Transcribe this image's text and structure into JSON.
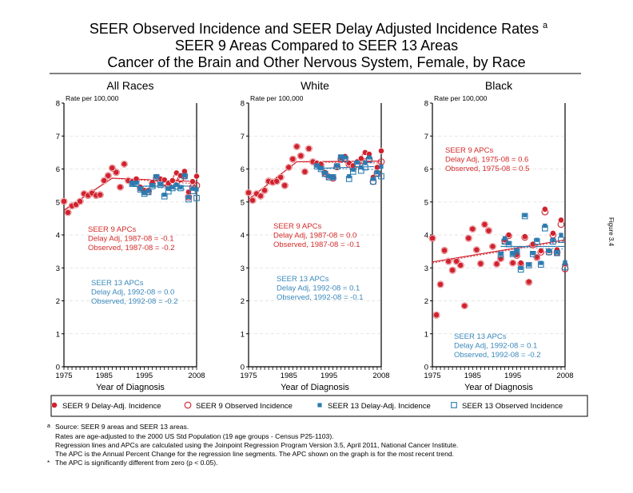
{
  "title": {
    "line1": "SEER Observed Incidence and SEER Delay Adjusted Incidence Rates",
    "line1_sup": "a",
    "line2": "SEER 9 Areas Compared to SEER 13 Areas",
    "line3": "Cancer of the Brain and Other Nervous System, Female, by Race"
  },
  "side_label": "Figure 3.4",
  "colors": {
    "seer9": "#d0222e",
    "seer13": "#2b7bb0",
    "seer9_text": "#d42a2a",
    "seer13_text": "#3a88bb",
    "grid": "#dddddd"
  },
  "legend": {
    "items": [
      {
        "label": "SEER 9 Delay-Adj. Incidence",
        "marker": "filled-circle",
        "series": "seer9"
      },
      {
        "label": "SEER 9 Observed Incidence",
        "marker": "open-circle",
        "series": "seer9"
      },
      {
        "label": "SEER 13 Delay-Adj. Incidence",
        "marker": "filled-square",
        "series": "seer13"
      },
      {
        "label": "SEER 13 Observed Incidence",
        "marker": "open-square",
        "series": "seer13"
      }
    ]
  },
  "footnotes": {
    "a_marker": "a",
    "a_lines": [
      "Source: SEER 9 areas and SEER 13 areas.",
      "Rates are age-adjusted to the 2000 US Std Population (19 age groups - Census P25-1103).",
      "Regression lines and APCs are calculated using the Joinpoint Regression Program Version 3.5, April 2011, National Cancer Institute.",
      "The APC is the Annual Percent Change for the regression line segments. The APC shown on the graph is for the most recent trend."
    ],
    "star_marker": "*",
    "star_line": "The APC is significantly different from zero (p < 0.05)."
  },
  "chart_data": [
    {
      "type": "scatter",
      "title": "All Races",
      "xlabel": "Year of Diagnosis",
      "ylabel": "Rate per 100,000",
      "xlim": [
        1975,
        2008
      ],
      "ylim": [
        0,
        8
      ],
      "xticks": [
        "1975",
        "1985",
        "1995",
        "2008"
      ],
      "yticks": [
        "0",
        "1",
        "2",
        "3",
        "4",
        "5",
        "6",
        "7",
        "8"
      ],
      "grid": true,
      "annotations": {
        "seer9": [
          "SEER 9 APCs",
          "Delay Adj, 1987-08 = -0.1",
          "Observed, 1987-08 = -0.2"
        ],
        "seer13": [
          "SEER 13 APCs",
          "Delay Adj, 1992-08 = 0.0",
          "Observed, 1992-08 = -0.2"
        ]
      },
      "seer9": {
        "start": 1975,
        "delay_adj": [
          5.02,
          4.68,
          4.88,
          4.92,
          5.02,
          5.25,
          5.2,
          5.27,
          5.2,
          5.22,
          5.65,
          5.8,
          6.03,
          5.9,
          5.45,
          6.15,
          5.65,
          5.62,
          5.7,
          5.45,
          5.35,
          5.35,
          5.6,
          5.77,
          5.7,
          5.67,
          5.57,
          5.65,
          5.88,
          5.8,
          5.93,
          5.3,
          5.62,
          5.78
        ],
        "observed": [
          5.02,
          4.68,
          4.88,
          4.92,
          5.02,
          5.25,
          5.2,
          5.27,
          5.2,
          5.22,
          5.65,
          5.8,
          6.03,
          5.9,
          5.45,
          6.15,
          5.65,
          5.62,
          5.68,
          5.43,
          5.33,
          5.32,
          5.57,
          5.73,
          5.65,
          5.6,
          5.5,
          5.55,
          5.75,
          5.7,
          5.8,
          5.15,
          5.45,
          5.5
        ],
        "delay_adj_trend": [
          [
            1975,
            4.75
          ],
          [
            1987,
            5.72
          ],
          [
            2008,
            5.62
          ]
        ],
        "observed_trend": [
          [
            1975,
            4.75
          ],
          [
            1987,
            5.72
          ],
          [
            2008,
            5.55
          ]
        ]
      },
      "seer13": {
        "start": 1992,
        "delay_adj": [
          5.55,
          5.58,
          5.4,
          5.27,
          5.33,
          5.5,
          5.77,
          5.55,
          5.22,
          5.4,
          5.45,
          5.52,
          5.45,
          5.8,
          5.15,
          5.4,
          5.38
        ],
        "observed": [
          5.55,
          5.55,
          5.38,
          5.25,
          5.3,
          5.48,
          5.75,
          5.52,
          5.17,
          5.32,
          5.42,
          5.47,
          5.42,
          5.78,
          5.08,
          5.33,
          5.12
        ],
        "delay_adj_trend": [
          [
            1992,
            5.48
          ],
          [
            2008,
            5.48
          ]
        ],
        "observed_trend": [
          [
            1992,
            5.5
          ],
          [
            2008,
            5.35
          ]
        ]
      }
    },
    {
      "type": "scatter",
      "title": "White",
      "xlabel": "Year of Diagnosis",
      "ylabel": "Rate per 100,000",
      "xlim": [
        1975,
        2008
      ],
      "ylim": [
        0,
        8
      ],
      "xticks": [
        "1975",
        "1985",
        "1995",
        "2008"
      ],
      "yticks": [
        "0",
        "1",
        "2",
        "3",
        "4",
        "5",
        "6",
        "7",
        "8"
      ],
      "grid": true,
      "annotations": {
        "seer9": [
          "SEER 9 APCs",
          "Delay Adj, 1987-08 = 0.0",
          "Observed, 1987-08 = -0.1"
        ],
        "seer13": [
          "SEER 13 APCs",
          "Delay Adj, 1992-08 = 0.1",
          "Observed, 1992-08 = -0.1"
        ]
      },
      "seer9": {
        "start": 1975,
        "delay_adj": [
          5.28,
          5.05,
          5.25,
          5.18,
          5.35,
          5.63,
          5.6,
          5.63,
          5.75,
          5.5,
          6.05,
          6.3,
          6.68,
          6.4,
          5.92,
          6.62,
          6.22,
          6.18,
          6.15,
          5.9,
          5.78,
          5.75,
          6.1,
          6.35,
          6.38,
          6.18,
          6.1,
          6.22,
          6.32,
          6.5,
          6.45,
          5.75,
          6.05,
          6.55
        ],
        "observed": [
          5.28,
          5.05,
          5.25,
          5.18,
          5.35,
          5.63,
          5.6,
          5.63,
          5.75,
          5.5,
          6.05,
          6.3,
          6.68,
          6.4,
          5.92,
          6.62,
          6.22,
          6.16,
          6.13,
          5.88,
          5.76,
          5.72,
          6.07,
          6.3,
          6.33,
          6.15,
          6.05,
          6.15,
          6.25,
          6.4,
          6.3,
          5.62,
          5.88,
          6.22
        ],
        "delay_adj_trend": [
          [
            1975,
            5.08
          ],
          [
            1987,
            6.22
          ],
          [
            2008,
            6.24
          ]
        ],
        "observed_trend": [
          [
            1975,
            5.08
          ],
          [
            1987,
            6.22
          ],
          [
            2008,
            6.18
          ]
        ]
      },
      "seer13": {
        "start": 1992,
        "delay_adj": [
          6.1,
          6.02,
          5.88,
          5.78,
          5.75,
          6.1,
          6.37,
          6.35,
          5.78,
          5.98,
          6.2,
          6.05,
          6.2,
          6.35,
          5.7,
          5.9,
          6.07
        ],
        "observed": [
          6.08,
          6.0,
          5.85,
          5.75,
          5.75,
          6.08,
          6.35,
          6.3,
          5.7,
          5.92,
          6.15,
          5.95,
          6.05,
          6.28,
          5.62,
          5.85,
          5.78
        ],
        "delay_adj_trend": [
          [
            1992,
            6.02
          ],
          [
            2008,
            6.08
          ]
        ],
        "observed_trend": [
          [
            1992,
            6.02
          ],
          [
            2008,
            5.98
          ]
        ]
      }
    },
    {
      "type": "scatter",
      "title": "Black",
      "xlabel": "Year of Diagnosis",
      "ylabel": "Rate per 100,000",
      "xlim": [
        1975,
        2008
      ],
      "ylim": [
        0,
        8
      ],
      "xticks": [
        "1975",
        "1985",
        "1995",
        "2008"
      ],
      "yticks": [
        "0",
        "1",
        "2",
        "3",
        "4",
        "5",
        "6",
        "7",
        "8"
      ],
      "grid": true,
      "annotations": {
        "seer9": [
          "SEER 9 APCs",
          "Delay Adj, 1975-08 = 0.6",
          "Observed, 1975-08 = 0.5"
        ],
        "seer13": [
          "SEER 13 APCs",
          "Delay Adj, 1992-08 = 0.1",
          "Observed, 1992-08 = -0.2"
        ]
      },
      "seer9": {
        "start": 1975,
        "delay_adj": [
          3.9,
          1.57,
          2.5,
          3.53,
          3.2,
          2.93,
          3.2,
          3.08,
          1.85,
          3.9,
          4.18,
          3.55,
          3.13,
          4.32,
          4.13,
          3.65,
          3.12,
          3.28,
          3.85,
          4.0,
          3.15,
          3.4,
          3.15,
          3.95,
          2.58,
          3.72,
          3.33,
          3.52,
          4.78,
          3.52,
          4.05,
          3.55,
          4.45,
          3.12
        ],
        "observed": [
          3.9,
          1.57,
          2.5,
          3.53,
          3.2,
          2.93,
          3.2,
          3.08,
          1.85,
          3.9,
          4.18,
          3.55,
          3.13,
          4.32,
          4.13,
          3.65,
          3.12,
          3.28,
          3.82,
          3.98,
          3.15,
          3.38,
          3.13,
          3.93,
          2.57,
          3.7,
          3.32,
          3.48,
          4.7,
          3.48,
          4.0,
          3.47,
          4.32,
          2.97
        ],
        "delay_adj_trend": [
          [
            1975,
            3.18
          ],
          [
            2008,
            3.85
          ]
        ],
        "observed_trend": [
          [
            1975,
            3.15
          ],
          [
            2008,
            3.82
          ]
        ]
      },
      "seer13": {
        "start": 1992,
        "delay_adj": [
          3.43,
          3.9,
          3.75,
          3.43,
          3.52,
          3.0,
          4.6,
          3.1,
          3.45,
          3.85,
          3.15,
          4.28,
          3.52,
          3.85,
          3.47,
          4.0,
          3.17
        ],
        "observed": [
          3.4,
          3.8,
          3.72,
          3.42,
          3.5,
          2.95,
          4.57,
          3.08,
          3.42,
          3.8,
          3.1,
          4.2,
          3.48,
          3.8,
          3.45,
          3.85,
          3.02
        ],
        "delay_adj_trend": [
          [
            1992,
            3.65
          ],
          [
            2008,
            3.65
          ]
        ],
        "observed_trend": [
          [
            1992,
            3.65
          ],
          [
            2008,
            3.57
          ]
        ]
      }
    }
  ]
}
